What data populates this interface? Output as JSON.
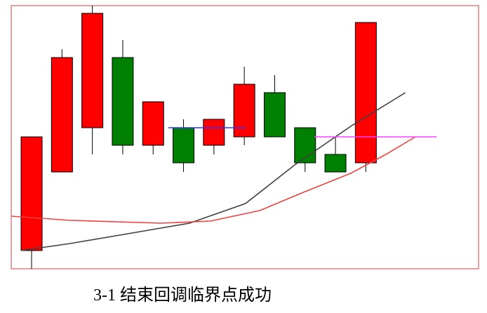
{
  "chart_data": {
    "type": "candlestick",
    "caption": "3-1 结束回调临界点成功",
    "xlim": [
      -0.67,
      14.71
    ],
    "ylim": [
      0,
      375
    ],
    "up_color": "#ff0000",
    "down_color": "#008000",
    "open": [
      26,
      138,
      201,
      301,
      176,
      201,
      176,
      188,
      251,
      201,
      163,
      151
    ],
    "close": [
      188,
      301,
      364,
      176,
      238,
      151,
      213,
      263,
      188,
      151,
      138,
      351
    ],
    "high": [
      188,
      313,
      375,
      326,
      238,
      213,
      213,
      288,
      276,
      201,
      188,
      351
    ],
    "low": [
      0,
      138,
      163,
      163,
      163,
      138,
      163,
      176,
      188,
      138,
      138,
      138
    ],
    "lines": [
      {
        "color": "#404040",
        "x": [
          -0.35,
          1.27,
          3.58,
          5.2,
          7.04,
          8.66,
          10.5,
          12.3
        ],
        "values": [
          26,
          36,
          53,
          65,
          93,
          148,
          203,
          251
        ]
      },
      {
        "color": "#f04040",
        "x": [
          -0.67,
          1.27,
          4.27,
          5.89,
          7.51,
          8.89,
          10.5,
          11.66,
          12.63
        ],
        "values": [
          75,
          69,
          65,
          68,
          83,
          108,
          136,
          163,
          188
        ]
      },
      {
        "color": "#3030ff",
        "x": [
          4.5,
          7.04
        ],
        "values": [
          201,
          201
        ]
      },
      {
        "color": "#ff40ff",
        "x": [
          9.31,
          13.33
        ],
        "values": [
          188,
          188
        ]
      }
    ]
  }
}
